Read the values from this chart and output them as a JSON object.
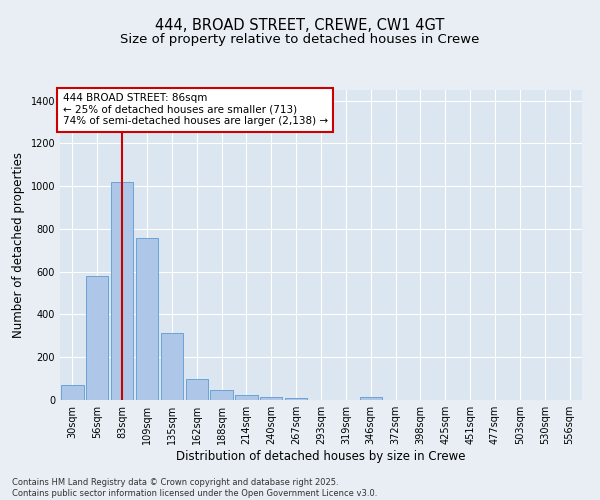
{
  "title": "444, BROAD STREET, CREWE, CW1 4GT",
  "subtitle": "Size of property relative to detached houses in Crewe",
  "xlabel": "Distribution of detached houses by size in Crewe",
  "ylabel": "Number of detached properties",
  "categories": [
    "30sqm",
    "56sqm",
    "83sqm",
    "109sqm",
    "135sqm",
    "162sqm",
    "188sqm",
    "214sqm",
    "240sqm",
    "267sqm",
    "293sqm",
    "319sqm",
    "346sqm",
    "372sqm",
    "398sqm",
    "425sqm",
    "451sqm",
    "477sqm",
    "503sqm",
    "530sqm",
    "556sqm"
  ],
  "values": [
    70,
    580,
    1020,
    760,
    315,
    100,
    45,
    22,
    15,
    10,
    0,
    0,
    15,
    0,
    0,
    0,
    0,
    0,
    0,
    0,
    0
  ],
  "bar_color": "#aec6e8",
  "bar_edge_color": "#5b9bd5",
  "annotation_text": "444 BROAD STREET: 86sqm\n← 25% of detached houses are smaller (713)\n74% of semi-detached houses are larger (2,138) →",
  "annotation_box_color": "#ffffff",
  "annotation_box_edge_color": "#cc0000",
  "annotation_text_color": "#000000",
  "vline_color": "#cc0000",
  "vline_x": 2.0,
  "ylim": [
    0,
    1450
  ],
  "yticks": [
    0,
    200,
    400,
    600,
    800,
    1000,
    1200,
    1400
  ],
  "bg_color": "#e8eef4",
  "plot_bg_color": "#dce6f0",
  "grid_color": "#ffffff",
  "footnote": "Contains HM Land Registry data © Crown copyright and database right 2025.\nContains public sector information licensed under the Open Government Licence v3.0.",
  "title_fontsize": 10.5,
  "subtitle_fontsize": 9.5,
  "axis_label_fontsize": 8.5,
  "tick_fontsize": 7,
  "annotation_fontsize": 7.5,
  "footnote_fontsize": 6
}
